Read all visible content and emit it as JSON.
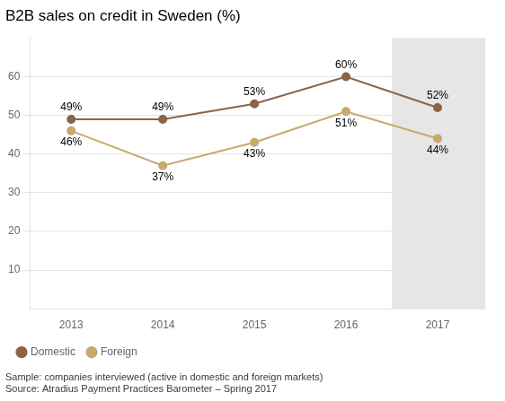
{
  "chart_data": {
    "type": "line",
    "title": "B2B sales on credit in Sweden (%)",
    "x": [
      2013,
      2014,
      2015,
      2016,
      2017
    ],
    "series": [
      {
        "name": "Domestic",
        "color": "#8B6347",
        "marker": "circle",
        "values": [
          49,
          49,
          53,
          60,
          52
        ],
        "value_labels": [
          "49%",
          "49%",
          "53%",
          "60%",
          "52%"
        ]
      },
      {
        "name": "Foreign",
        "color": "#C8A96E",
        "marker": "circle",
        "values": [
          46,
          37,
          43,
          51,
          44
        ],
        "value_labels": [
          "46%",
          "37%",
          "43%",
          "51%",
          "44%"
        ]
      }
    ],
    "xlim": [
      2012.55,
      2017.52
    ],
    "xticks": [
      2013,
      2014,
      2015,
      2016,
      2017
    ],
    "ylim": [
      0,
      70
    ],
    "yticks": [
      10,
      20,
      30,
      40,
      50,
      60
    ],
    "shaded": {
      "x": [
        2016.5,
        2017.52
      ],
      "color": "#E6E6E6"
    },
    "grid": "y",
    "legend": "bottom",
    "data_labels": true,
    "annotations": [
      "Sample: companies interviewed (active in domestic and foreign markets)",
      "Source: Atradius Payment Practices Barometer – Spring 2017"
    ]
  }
}
